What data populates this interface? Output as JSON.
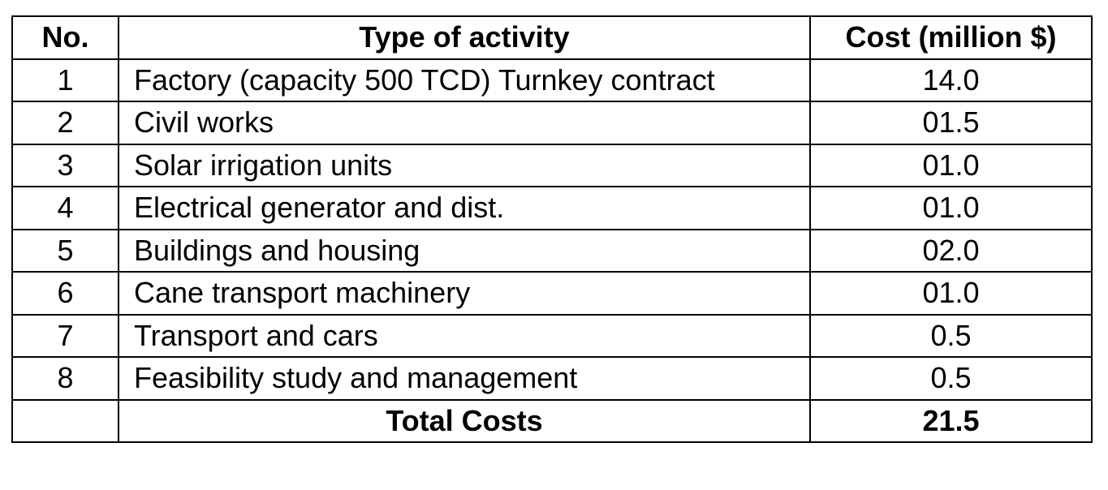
{
  "table": {
    "headers": {
      "no": "No.",
      "type": "Type of activity",
      "cost": "Cost (million $)"
    },
    "rows": [
      {
        "no": "1",
        "type": "Factory (capacity 500 TCD) Turnkey contract",
        "cost": "14.0"
      },
      {
        "no": "2",
        "type": "Civil works",
        "cost": "01.5"
      },
      {
        "no": "3",
        "type": "Solar irrigation units",
        "cost": "01.0"
      },
      {
        "no": "4",
        "type": "Electrical generator and dist.",
        "cost": "01.0"
      },
      {
        "no": "5",
        "type": "Buildings and housing",
        "cost": "02.0"
      },
      {
        "no": "6",
        "type": "Cane transport machinery",
        "cost": "01.0"
      },
      {
        "no": "7",
        "type": "Transport and cars",
        "cost": "0.5"
      },
      {
        "no": "8",
        "type": "Feasibility study and management",
        "cost": "0.5"
      }
    ],
    "total": {
      "label": "Total Costs",
      "value": "21.5"
    }
  }
}
